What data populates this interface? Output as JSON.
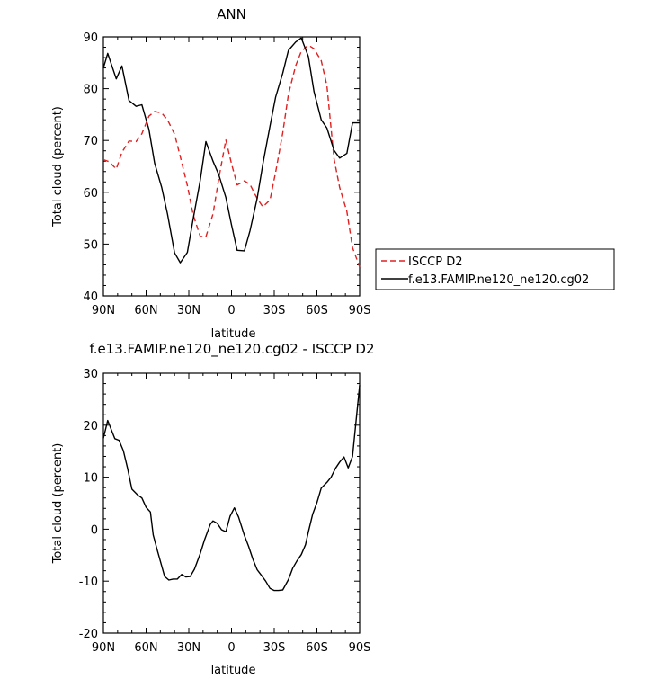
{
  "chart_data": [
    {
      "type": "line",
      "title": "ANN",
      "xlabel": "latitude",
      "ylabel": "Total cloud (percent)",
      "xlim": [
        90,
        -90
      ],
      "ylim": [
        40,
        90
      ],
      "yticks": [
        40,
        50,
        60,
        70,
        80,
        90
      ],
      "xticks": [
        {
          "value": 90,
          "label": "90N"
        },
        {
          "value": 60,
          "label": "60N"
        },
        {
          "value": 30,
          "label": "30N"
        },
        {
          "value": 0,
          "label": "0"
        },
        {
          "value": -30,
          "label": "30S"
        },
        {
          "value": -60,
          "label": "60S"
        },
        {
          "value": -90,
          "label": "90S"
        }
      ],
      "legend_position": "right",
      "series": [
        {
          "name": "ISCCP D2",
          "color": "#e02020",
          "dash": "dashed",
          "x": [
            90,
            86,
            81,
            77,
            72,
            67,
            63,
            58,
            54,
            49,
            45,
            40,
            36,
            31,
            27,
            22,
            18,
            13,
            9,
            4,
            0,
            -4,
            -9,
            -13,
            -18,
            -22,
            -27,
            -31,
            -36,
            -40,
            -45,
            -49,
            -54,
            -58,
            -63,
            -67,
            -72,
            -76,
            -81,
            -85,
            -90
          ],
          "y": [
            66.3,
            65.9,
            64.5,
            67.7,
            69.9,
            69.8,
            71.3,
            74.7,
            75.6,
            75.3,
            74.0,
            71.2,
            66.9,
            61.3,
            55.7,
            51.5,
            51.4,
            55.8,
            62.6,
            70.1,
            65.5,
            61.4,
            62.2,
            61.5,
            58.8,
            57.2,
            58.5,
            63.9,
            71.5,
            78.9,
            84.4,
            87.2,
            88.4,
            87.7,
            85.4,
            80.6,
            66.5,
            60.9,
            56.3,
            49.3,
            45.6
          ]
        },
        {
          "name": "f.e13.FAMIP.ne120_ne120.cg02",
          "color": "#000000",
          "dash": "solid",
          "x": [
            90,
            87,
            81,
            77,
            72,
            67,
            63,
            58,
            54,
            49,
            45,
            40,
            36,
            31,
            27,
            22,
            18,
            13,
            9,
            4,
            0,
            -4,
            -9,
            -13,
            -18,
            -22,
            -27,
            -31,
            -36,
            -40,
            -45,
            -49,
            -54,
            -58,
            -63,
            -67,
            -72,
            -76,
            -81,
            -85,
            -90
          ],
          "y": [
            84.0,
            86.8,
            81.9,
            84.4,
            77.7,
            76.6,
            76.9,
            72.1,
            65.6,
            60.9,
            55.8,
            48.3,
            46.4,
            48.4,
            54.8,
            62.3,
            69.8,
            66.0,
            63.4,
            59.0,
            53.7,
            48.8,
            48.7,
            52.6,
            58.8,
            65.4,
            72.8,
            78.4,
            83.0,
            87.4,
            89.0,
            89.8,
            86.2,
            79.4,
            74.0,
            72.4,
            68.1,
            66.6,
            67.5,
            73.4,
            73.4
          ]
        }
      ]
    },
    {
      "type": "line",
      "title": "f.e13.FAMIP.ne120_ne120.cg02 - ISCCP D2",
      "xlabel": "latitude",
      "ylabel": "Total cloud (percent)",
      "xlim": [
        90,
        -90
      ],
      "ylim": [
        -20,
        30
      ],
      "yticks": [
        -20,
        -10,
        0,
        10,
        20,
        30
      ],
      "xticks": [
        {
          "value": 90,
          "label": "90N"
        },
        {
          "value": 60,
          "label": "60N"
        },
        {
          "value": 30,
          "label": "30N"
        },
        {
          "value": 0,
          "label": "0"
        },
        {
          "value": -30,
          "label": "30S"
        },
        {
          "value": -60,
          "label": "60S"
        },
        {
          "value": -90,
          "label": "90S"
        }
      ],
      "series": [
        {
          "color": "#000000",
          "dash": "solid",
          "x": [
            90,
            87,
            82,
            79,
            76,
            73,
            70,
            66,
            63,
            60,
            57,
            55,
            52,
            47,
            44,
            41,
            38,
            35,
            32,
            29,
            26,
            22,
            19,
            15,
            13,
            10,
            7,
            4,
            1,
            -2,
            -5,
            -9,
            -12,
            -15,
            -18,
            -21,
            -24,
            -27,
            -30,
            -33,
            -36,
            -40,
            -43,
            -46,
            -49,
            -52,
            -54,
            -57,
            -60,
            -63,
            -67,
            -70,
            -73,
            -76,
            -79,
            -82,
            -85,
            -90
          ],
          "y": [
            17.5,
            20.9,
            17.4,
            17.1,
            15.1,
            11.7,
            7.7,
            6.6,
            6.0,
            4.2,
            3.3,
            -1.1,
            -4.2,
            -9.1,
            -9.8,
            -9.6,
            -9.6,
            -8.7,
            -9.2,
            -9.1,
            -7.7,
            -4.7,
            -2.1,
            0.9,
            1.6,
            1.1,
            -0.1,
            -0.5,
            2.5,
            4.1,
            2.3,
            -1.2,
            -3.3,
            -5.8,
            -7.8,
            -8.9,
            -10.0,
            -11.4,
            -11.8,
            -11.8,
            -11.7,
            -9.7,
            -7.5,
            -6.1,
            -4.9,
            -3.0,
            -0.5,
            2.9,
            5.1,
            7.9,
            9.0,
            10.0,
            11.7,
            12.9,
            13.9,
            11.8,
            14.0,
            27.7
          ]
        }
      ]
    }
  ]
}
